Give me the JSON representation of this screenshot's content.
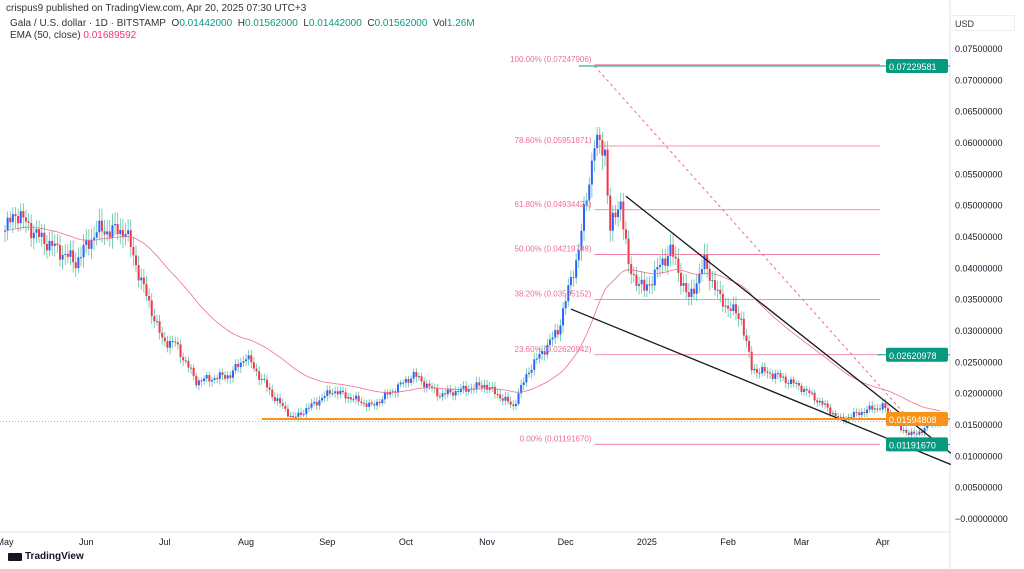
{
  "published": "crispus9 published on TradingView.com, Apr 20, 2025 07:30 UTC+3",
  "legend": {
    "symbol": "Gala / U.S. dollar · 1D · BITSTAMP",
    "o_label": "O",
    "o": "0.01442000",
    "h_label": "H",
    "h": "0.01562000",
    "l_label": "L",
    "l": "0.01442000",
    "c_label": "C",
    "c": "0.01562000",
    "vol_label": "Vol",
    "vol": "1.26M",
    "ema_label": "EMA (50, close)",
    "ema": "0.01689592"
  },
  "currency": "USD",
  "logo": "TradingView",
  "colors": {
    "up": "#2962ff",
    "down": "#f23645",
    "wick": "#5fc1a8",
    "ema": "#f06d92",
    "fib": "#f06d92",
    "teal": "#089981",
    "orange": "#f7931a"
  },
  "chart_data": {
    "type": "candlestick",
    "x_unit": "days since 2024-05-01",
    "xlim": [
      -4,
      370
    ],
    "ylim": [
      -0.003,
      0.077
    ],
    "y_ticks": [
      "0.07500000",
      "0.07000000",
      "0.06500000",
      "0.06000000",
      "0.05500000",
      "0.05000000",
      "0.04500000",
      "0.04000000",
      "0.03500000",
      "0.03000000",
      "0.02500000",
      "0.02000000",
      "0.01500000",
      "0.01000000",
      "0.00500000",
      "−0.00000000"
    ],
    "y_tick_values": [
      0.075,
      0.07,
      0.065,
      0.06,
      0.055,
      0.05,
      0.045,
      0.04,
      0.035,
      0.03,
      0.025,
      0.02,
      0.015,
      0.01,
      0.005,
      0
    ],
    "x_ticks": [
      {
        "label": "May",
        "day": 0
      },
      {
        "label": "Jun",
        "day": 31
      },
      {
        "label": "Jul",
        "day": 61
      },
      {
        "label": "Aug",
        "day": 92
      },
      {
        "label": "Sep",
        "day": 123
      },
      {
        "label": "Oct",
        "day": 153
      },
      {
        "label": "Nov",
        "day": 184
      },
      {
        "label": "Dec",
        "day": 214
      },
      {
        "label": "2025",
        "day": 245
      },
      {
        "label": "Feb",
        "day": 276
      },
      {
        "label": "Mar",
        "day": 304
      },
      {
        "label": "Apr",
        "day": 335
      }
    ],
    "close_keypoints": [
      [
        0,
        0.046
      ],
      [
        4,
        0.049
      ],
      [
        13,
        0.045
      ],
      [
        27,
        0.041
      ],
      [
        35,
        0.046
      ],
      [
        46,
        0.046
      ],
      [
        52,
        0.038
      ],
      [
        60,
        0.0285
      ],
      [
        65,
        0.028
      ],
      [
        73,
        0.022
      ],
      [
        86,
        0.023
      ],
      [
        92,
        0.026
      ],
      [
        102,
        0.0198
      ],
      [
        110,
        0.016
      ],
      [
        125,
        0.0205
      ],
      [
        140,
        0.018
      ],
      [
        156,
        0.023
      ],
      [
        166,
        0.0198
      ],
      [
        183,
        0.0214
      ],
      [
        194,
        0.018
      ],
      [
        200,
        0.0238
      ],
      [
        211,
        0.03
      ],
      [
        219,
        0.043
      ],
      [
        225,
        0.06
      ],
      [
        229,
        0.059
      ],
      [
        231,
        0.046
      ],
      [
        235,
        0.051
      ],
      [
        238,
        0.04
      ],
      [
        244,
        0.0365
      ],
      [
        254,
        0.043
      ],
      [
        261,
        0.035
      ],
      [
        267,
        0.041
      ],
      [
        273,
        0.035
      ],
      [
        281,
        0.032
      ],
      [
        285,
        0.024
      ],
      [
        294,
        0.023
      ],
      [
        304,
        0.021
      ],
      [
        313,
        0.018
      ],
      [
        319,
        0.0158
      ],
      [
        329,
        0.0174
      ],
      [
        335,
        0.018
      ],
      [
        342,
        0.0142
      ],
      [
        348,
        0.0134
      ],
      [
        352,
        0.015
      ],
      [
        357,
        0.0156
      ]
    ],
    "ema_period": 50,
    "ema_last": 0.01689592,
    "fib": {
      "from_day": 225,
      "to_day": 345,
      "levels": [
        {
          "label": "100.00% (0.07247906)",
          "value": 0.07247906
        },
        {
          "label": "78.60% (0.05951871)",
          "value": 0.05951871
        },
        {
          "label": "61.80% (0.04934424)",
          "value": 0.04934424
        },
        {
          "label": "50.00% (0.04219788)",
          "value": 0.04219788
        },
        {
          "label": "38.20% (0.03505152)",
          "value": 0.03505152
        },
        {
          "label": "23.60% (0.02620942)",
          "value": 0.02620942
        },
        {
          "label": "0.00% (0.01191670)",
          "value": 0.0119167
        }
      ]
    },
    "horizontal_lines": [
      {
        "label": "0.07229581",
        "value": 0.07229581,
        "from_day": 219,
        "color": "teal"
      },
      {
        "label": "0.02620978",
        "value": 0.02620978,
        "from_day": 333,
        "color": "teal"
      },
      {
        "label": "0.01594808",
        "value": 0.01594808,
        "from_day": 98,
        "color": "orange"
      },
      {
        "label": "0.01191670",
        "value": 0.0119167,
        "from_day": 337,
        "color": "teal"
      }
    ],
    "trendlines": [
      {
        "from": [
          237,
          0.0515
        ],
        "to": [
          361,
          0.0105
        ]
      },
      {
        "from": [
          216,
          0.0335
        ],
        "to": [
          361,
          0.0087
        ]
      }
    ],
    "diagonal": {
      "from": [
        225,
        0.0723
      ],
      "to": [
        345,
        0.016
      ]
    }
  }
}
